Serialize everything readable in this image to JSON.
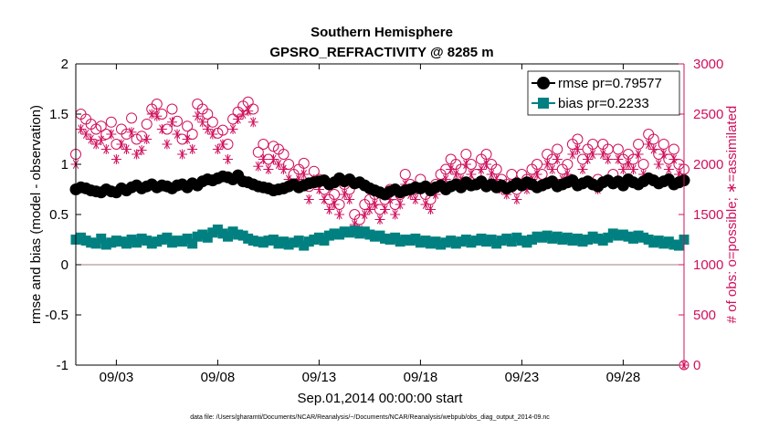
{
  "chart_data": {
    "type": "line",
    "title": "Southern Hemisphere",
    "subtitle": "GPSRO_REFRACTIVITY @ 8285 m",
    "xlabel": "Sep.01,2014 00:00:00 start",
    "ylabel_left": "rmse and bias (model - observation)",
    "ylabel_right": "# of obs: o=possible; ∗=assimilated",
    "ylim_left": [
      -1,
      2
    ],
    "ylim_right": [
      0,
      3000
    ],
    "xlim": [
      0,
      30
    ],
    "x_tick_values": [
      2,
      7,
      12,
      17,
      22,
      27
    ],
    "x_tick_labels": [
      "09/03",
      "09/08",
      "09/13",
      "09/18",
      "09/23",
      "09/28"
    ],
    "y_left_ticks": [
      "-1",
      "-0.5",
      "0",
      "0.5",
      "1",
      "1.5",
      "2"
    ],
    "y_right_ticks": [
      "0",
      "500",
      "1000",
      "1500",
      "2000",
      "2500",
      "3000"
    ],
    "footnote": "data file: /Users/gharamti/Documents/NCAR/Reanalysis/~/Documents/NCAR/Reanalysis/webpub/obs_diag_output_2014-09.nc",
    "legend_position": "top-right",
    "colors": {
      "rmse": "#000000",
      "bias": "#008080",
      "obs": "#d0105c",
      "zero_line": "#a08080"
    },
    "x": [
      0.0,
      0.25,
      0.5,
      0.75,
      1.0,
      1.25,
      1.5,
      1.75,
      2.0,
      2.25,
      2.5,
      2.75,
      3.0,
      3.25,
      3.5,
      3.75,
      4.0,
      4.25,
      4.5,
      4.75,
      5.0,
      5.25,
      5.5,
      5.75,
      6.0,
      6.25,
      6.5,
      6.75,
      7.0,
      7.25,
      7.5,
      7.75,
      8.0,
      8.25,
      8.5,
      8.75,
      9.0,
      9.25,
      9.5,
      9.75,
      10.0,
      10.25,
      10.5,
      10.75,
      11.0,
      11.25,
      11.5,
      11.75,
      12.0,
      12.25,
      12.5,
      12.75,
      13.0,
      13.25,
      13.5,
      13.75,
      14.0,
      14.25,
      14.5,
      14.75,
      15.0,
      15.25,
      15.5,
      15.75,
      16.0,
      16.25,
      16.5,
      16.75,
      17.0,
      17.25,
      17.5,
      17.75,
      18.0,
      18.25,
      18.5,
      18.75,
      19.0,
      19.25,
      19.5,
      19.75,
      20.0,
      20.25,
      20.5,
      20.75,
      21.0,
      21.25,
      21.5,
      21.75,
      22.0,
      22.25,
      22.5,
      22.75,
      23.0,
      23.25,
      23.5,
      23.75,
      24.0,
      24.25,
      24.5,
      24.75,
      25.0,
      25.25,
      25.5,
      25.75,
      26.0,
      26.25,
      26.5,
      26.75,
      27.0,
      27.25,
      27.5,
      27.75,
      28.0,
      28.25,
      28.5,
      28.75,
      29.0,
      29.25,
      29.5,
      29.75,
      30.0
    ],
    "series": [
      {
        "name": "rmse pr=0.79577",
        "axis": "left",
        "values": [
          0.75,
          0.77,
          0.76,
          0.74,
          0.73,
          0.72,
          0.75,
          0.73,
          0.72,
          0.76,
          0.74,
          0.77,
          0.79,
          0.76,
          0.78,
          0.8,
          0.77,
          0.79,
          0.78,
          0.76,
          0.79,
          0.8,
          0.77,
          0.81,
          0.79,
          0.83,
          0.85,
          0.84,
          0.86,
          0.88,
          0.87,
          0.85,
          0.89,
          0.83,
          0.82,
          0.8,
          0.78,
          0.77,
          0.76,
          0.74,
          0.75,
          0.76,
          0.78,
          0.8,
          0.77,
          0.79,
          0.81,
          0.82,
          0.83,
          0.84,
          0.8,
          0.82,
          0.86,
          0.83,
          0.85,
          0.81,
          0.82,
          0.79,
          0.76,
          0.74,
          0.72,
          0.7,
          0.73,
          0.75,
          0.72,
          0.74,
          0.75,
          0.77,
          0.76,
          0.78,
          0.74,
          0.77,
          0.79,
          0.75,
          0.78,
          0.8,
          0.77,
          0.82,
          0.79,
          0.8,
          0.83,
          0.78,
          0.8,
          0.77,
          0.79,
          0.76,
          0.78,
          0.81,
          0.79,
          0.82,
          0.8,
          0.77,
          0.79,
          0.81,
          0.83,
          0.78,
          0.8,
          0.82,
          0.84,
          0.79,
          0.81,
          0.83,
          0.8,
          0.78,
          0.82,
          0.84,
          0.81,
          0.83,
          0.79,
          0.85,
          0.82,
          0.8,
          0.83,
          0.86,
          0.84,
          0.81,
          0.83,
          0.85,
          0.8,
          0.82,
          0.84
        ]
      },
      {
        "name": "bias pr=0.2233",
        "axis": "left",
        "values": [
          0.25,
          0.27,
          0.24,
          0.22,
          0.21,
          0.26,
          0.2,
          0.22,
          0.24,
          0.23,
          0.21,
          0.25,
          0.22,
          0.26,
          0.24,
          0.21,
          0.23,
          0.25,
          0.27,
          0.22,
          0.24,
          0.23,
          0.26,
          0.21,
          0.28,
          0.3,
          0.27,
          0.32,
          0.35,
          0.31,
          0.28,
          0.33,
          0.3,
          0.29,
          0.26,
          0.24,
          0.23,
          0.22,
          0.24,
          0.25,
          0.21,
          0.23,
          0.2,
          0.22,
          0.24,
          0.19,
          0.23,
          0.25,
          0.27,
          0.24,
          0.29,
          0.31,
          0.3,
          0.33,
          0.32,
          0.34,
          0.31,
          0.33,
          0.3,
          0.28,
          0.29,
          0.26,
          0.25,
          0.27,
          0.23,
          0.25,
          0.24,
          0.26,
          0.22,
          0.24,
          0.21,
          0.23,
          0.2,
          0.22,
          0.24,
          0.21,
          0.23,
          0.25,
          0.22,
          0.24,
          0.26,
          0.23,
          0.25,
          0.21,
          0.24,
          0.26,
          0.23,
          0.27,
          0.24,
          0.22,
          0.25,
          0.28,
          0.27,
          0.29,
          0.26,
          0.28,
          0.25,
          0.27,
          0.24,
          0.26,
          0.23,
          0.25,
          0.28,
          0.26,
          0.24,
          0.27,
          0.31,
          0.29,
          0.3,
          0.28,
          0.26,
          0.29,
          0.27,
          0.25,
          0.22,
          0.24,
          0.21,
          0.23,
          0.2,
          0.19,
          0.25
        ]
      },
      {
        "name": "possible",
        "axis": "right",
        "marker": "circle",
        "values": [
          2100,
          2500,
          2450,
          2400,
          2350,
          2380,
          2300,
          2420,
          2200,
          2350,
          2300,
          2460,
          2250,
          2280,
          2400,
          2550,
          2600,
          2500,
          2350,
          2550,
          2430,
          2250,
          2380,
          2300,
          2600,
          2550,
          2500,
          2420,
          2310,
          2340,
          2200,
          2450,
          2520,
          2580,
          2620,
          2550,
          2120,
          2200,
          2050,
          2180,
          2150,
          2100,
          2000,
          1900,
          1950,
          2010,
          1780,
          1930,
          1850,
          1750,
          1650,
          1700,
          1600,
          1800,
          1750,
          1500,
          1450,
          1600,
          1650,
          1700,
          1550,
          1650,
          1750,
          1600,
          1700,
          1900,
          1800,
          1750,
          1850,
          1700,
          1650,
          1800,
          1900,
          1950,
          2050,
          2000,
          1950,
          2100,
          2000,
          1900,
          2050,
          2100,
          2000,
          1950,
          1850,
          1800,
          1900,
          1750,
          1900,
          1850,
          1950,
          2000,
          1900,
          2100,
          2050,
          2150,
          1950,
          2000,
          2200,
          2250,
          2050,
          2150,
          2200,
          1850,
          2200,
          2150,
          1900,
          2150,
          2050,
          2100,
          2050,
          2200,
          2000,
          2300,
          2250,
          2100,
          2200,
          2050,
          2150,
          2000,
          1950
        ]
      },
      {
        "name": "assimilated",
        "axis": "right",
        "marker": "asterisk",
        "values": [
          2000,
          2350,
          2300,
          2250,
          2200,
          2240,
          2150,
          2300,
          2050,
          2200,
          2150,
          2320,
          2100,
          2140,
          2250,
          2500,
          2480,
          2350,
          2200,
          2420,
          2300,
          2100,
          2250,
          2150,
          2480,
          2420,
          2350,
          2300,
          2150,
          2200,
          2050,
          2350,
          2450,
          2500,
          2530,
          2420,
          1980,
          2050,
          1950,
          2050,
          2000,
          1950,
          1850,
          1800,
          1850,
          1900,
          1650,
          1850,
          1750,
          1650,
          1550,
          1600,
          1500,
          1700,
          1650,
          1400,
          1350,
          1500,
          1550,
          1600,
          1450,
          1550,
          1650,
          1500,
          1600,
          1800,
          1700,
          1650,
          1750,
          1600,
          1550,
          1700,
          1800,
          1850,
          1950,
          1900,
          1850,
          2000,
          1900,
          1800,
          1950,
          2000,
          1900,
          1850,
          1750,
          1700,
          1800,
          1650,
          1800,
          1750,
          1850,
          1900,
          1800,
          2000,
          1950,
          2050,
          1850,
          1900,
          2100,
          2150,
          1950,
          2050,
          2100,
          1750,
          2100,
          2050,
          1800,
          2050,
          1950,
          2000,
          1950,
          2100,
          1900,
          2200,
          2150,
          2000,
          2100,
          1950,
          2050,
          1900,
          1850
        ]
      }
    ]
  }
}
